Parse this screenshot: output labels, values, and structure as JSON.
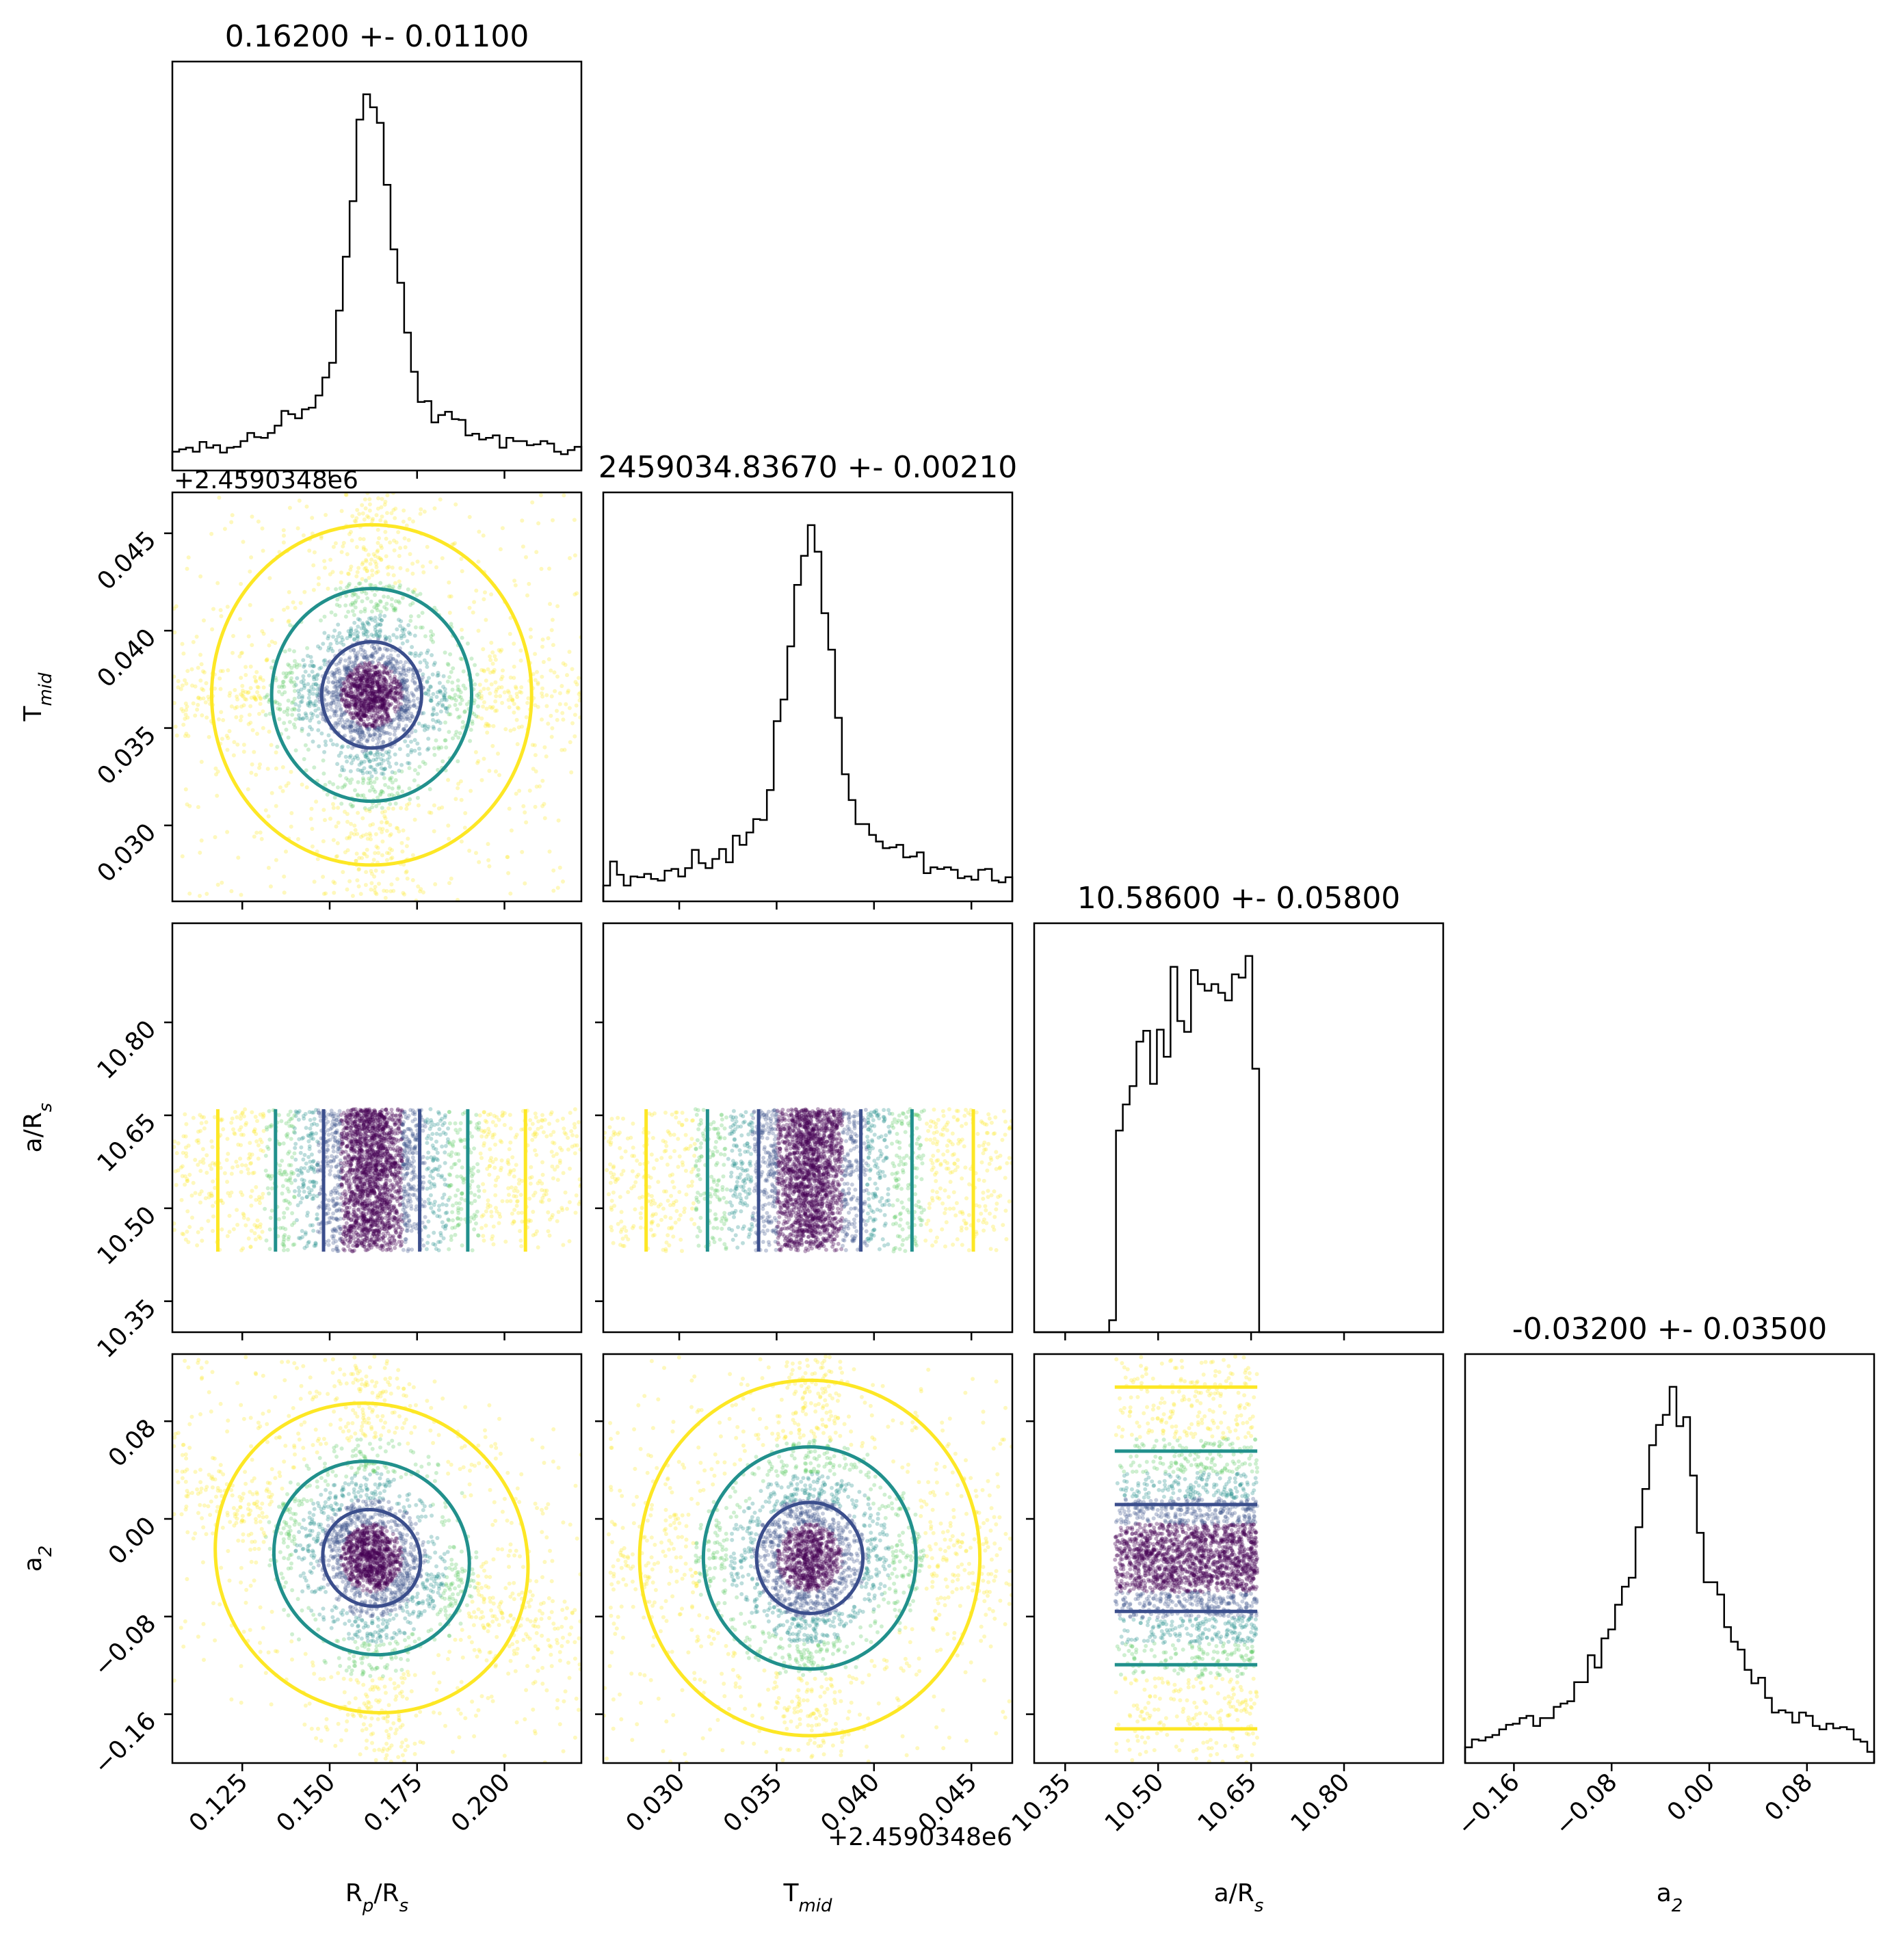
{
  "chart_data": {
    "type": "corner",
    "parameters": [
      {
        "key": "rprs",
        "title": "0.16200 +- 0.01100",
        "median": 0.162,
        "sigma": 0.011,
        "range": [
          0.105,
          0.222
        ],
        "ticks": [
          "0.125",
          "0.150",
          "0.175",
          "0.200"
        ],
        "tick_values": [
          0.125,
          0.15,
          0.175,
          0.2
        ],
        "label": "R",
        "label_sub": "p",
        "label_tail": "/R",
        "label_sub2": "s",
        "distribution": "peaked",
        "offset": ""
      },
      {
        "key": "tmid",
        "title": "2459034.83670 +- 0.00210",
        "median": 0.0367,
        "sigma": 0.0021,
        "range": [
          0.0261,
          0.0471
        ],
        "ticks": [
          "0.030",
          "0.035",
          "0.040",
          "0.045"
        ],
        "tick_values": [
          0.03,
          0.035,
          0.04,
          0.045
        ],
        "label": "T",
        "label_sub": "mid",
        "label_tail": "",
        "label_sub2": "",
        "distribution": "peaked",
        "offset": "+2.4590348e6"
      },
      {
        "key": "ars",
        "title": "10.58600 +- 0.05800",
        "median": 10.586,
        "sigma": 0.058,
        "range": [
          10.3,
          10.96
        ],
        "ticks": [
          "10.35",
          "10.50",
          "10.65",
          "10.80"
        ],
        "tick_values": [
          10.35,
          10.5,
          10.65,
          10.8
        ],
        "label": "a/R",
        "label_sub": "s",
        "label_tail": "",
        "label_sub2": "",
        "distribution": "uniform",
        "uniform_range": [
          10.43,
          10.66
        ],
        "offset": ""
      },
      {
        "key": "a2",
        "title": "-0.03200 +- 0.03500",
        "median": -0.032,
        "sigma": 0.035,
        "range": [
          -0.2,
          0.135
        ],
        "ticks": [
          "−0.16",
          "−0.08",
          "0.00",
          "0.08"
        ],
        "tick_values": [
          -0.16,
          -0.08,
          0.0,
          0.08
        ],
        "label": "a",
        "label_sub": "2",
        "label_tail": "",
        "label_sub2": "",
        "distribution": "peaked",
        "offset": ""
      }
    ],
    "correlations": {
      "rprs_a2": -0.45,
      "tmid_a2": 0.0,
      "rprs_tmid": 0.0
    },
    "contour_colors": [
      "#3b4e8c",
      "#21908c",
      "#fde725"
    ],
    "scatter_colormap": [
      "#440154",
      "#3b528b",
      "#21908c",
      "#5ec962",
      "#fde725"
    ],
    "hist_bins": 60,
    "grid": false,
    "legend": "none"
  }
}
